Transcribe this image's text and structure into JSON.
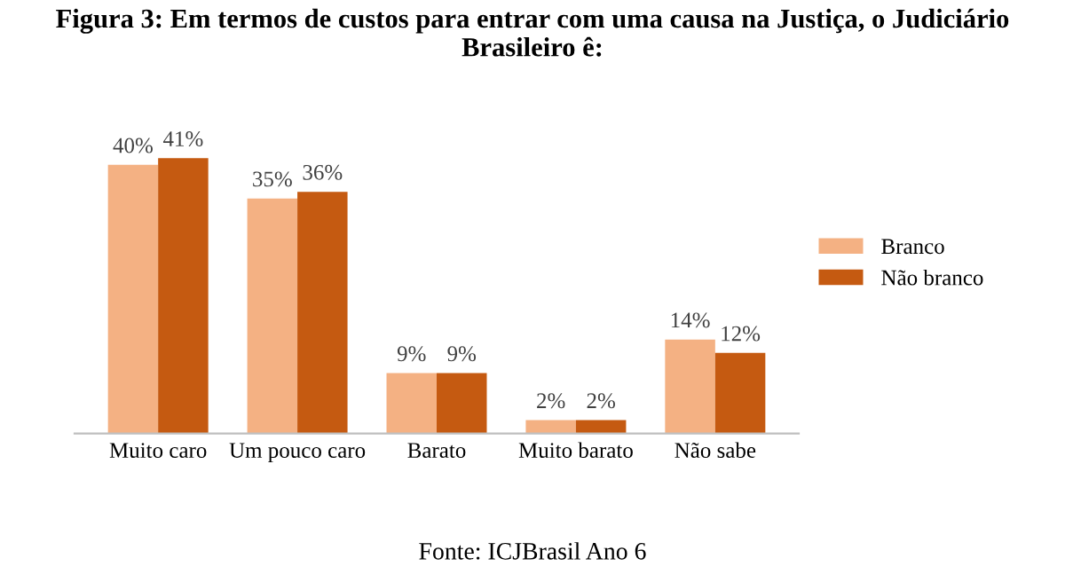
{
  "chart_data": {
    "type": "bar",
    "title": "Figura 3: Em termos de custos para entrar com uma causa na Justiça, o Judiciário Brasileiro ê:",
    "categories": [
      "Muito caro",
      "Um pouco caro",
      "Barato",
      "Muito barato",
      "Não sabe"
    ],
    "series": [
      {
        "name": "Branco",
        "color": "#f4b183",
        "values": [
          40,
          35,
          9,
          2,
          14
        ],
        "value_labels": [
          "40%",
          "35%",
          "9%",
          "2%",
          "14%"
        ]
      },
      {
        "name": "Não branco",
        "color": "#c55a11",
        "values": [
          41,
          36,
          9,
          2,
          12
        ],
        "value_labels": [
          "41%",
          "36%",
          "9%",
          "2%",
          "12%"
        ]
      }
    ],
    "legend": "right",
    "grid": false,
    "tick_labels": "x",
    "annotations": [
      "Fonte: ICJBrasil Ano 6"
    ]
  }
}
